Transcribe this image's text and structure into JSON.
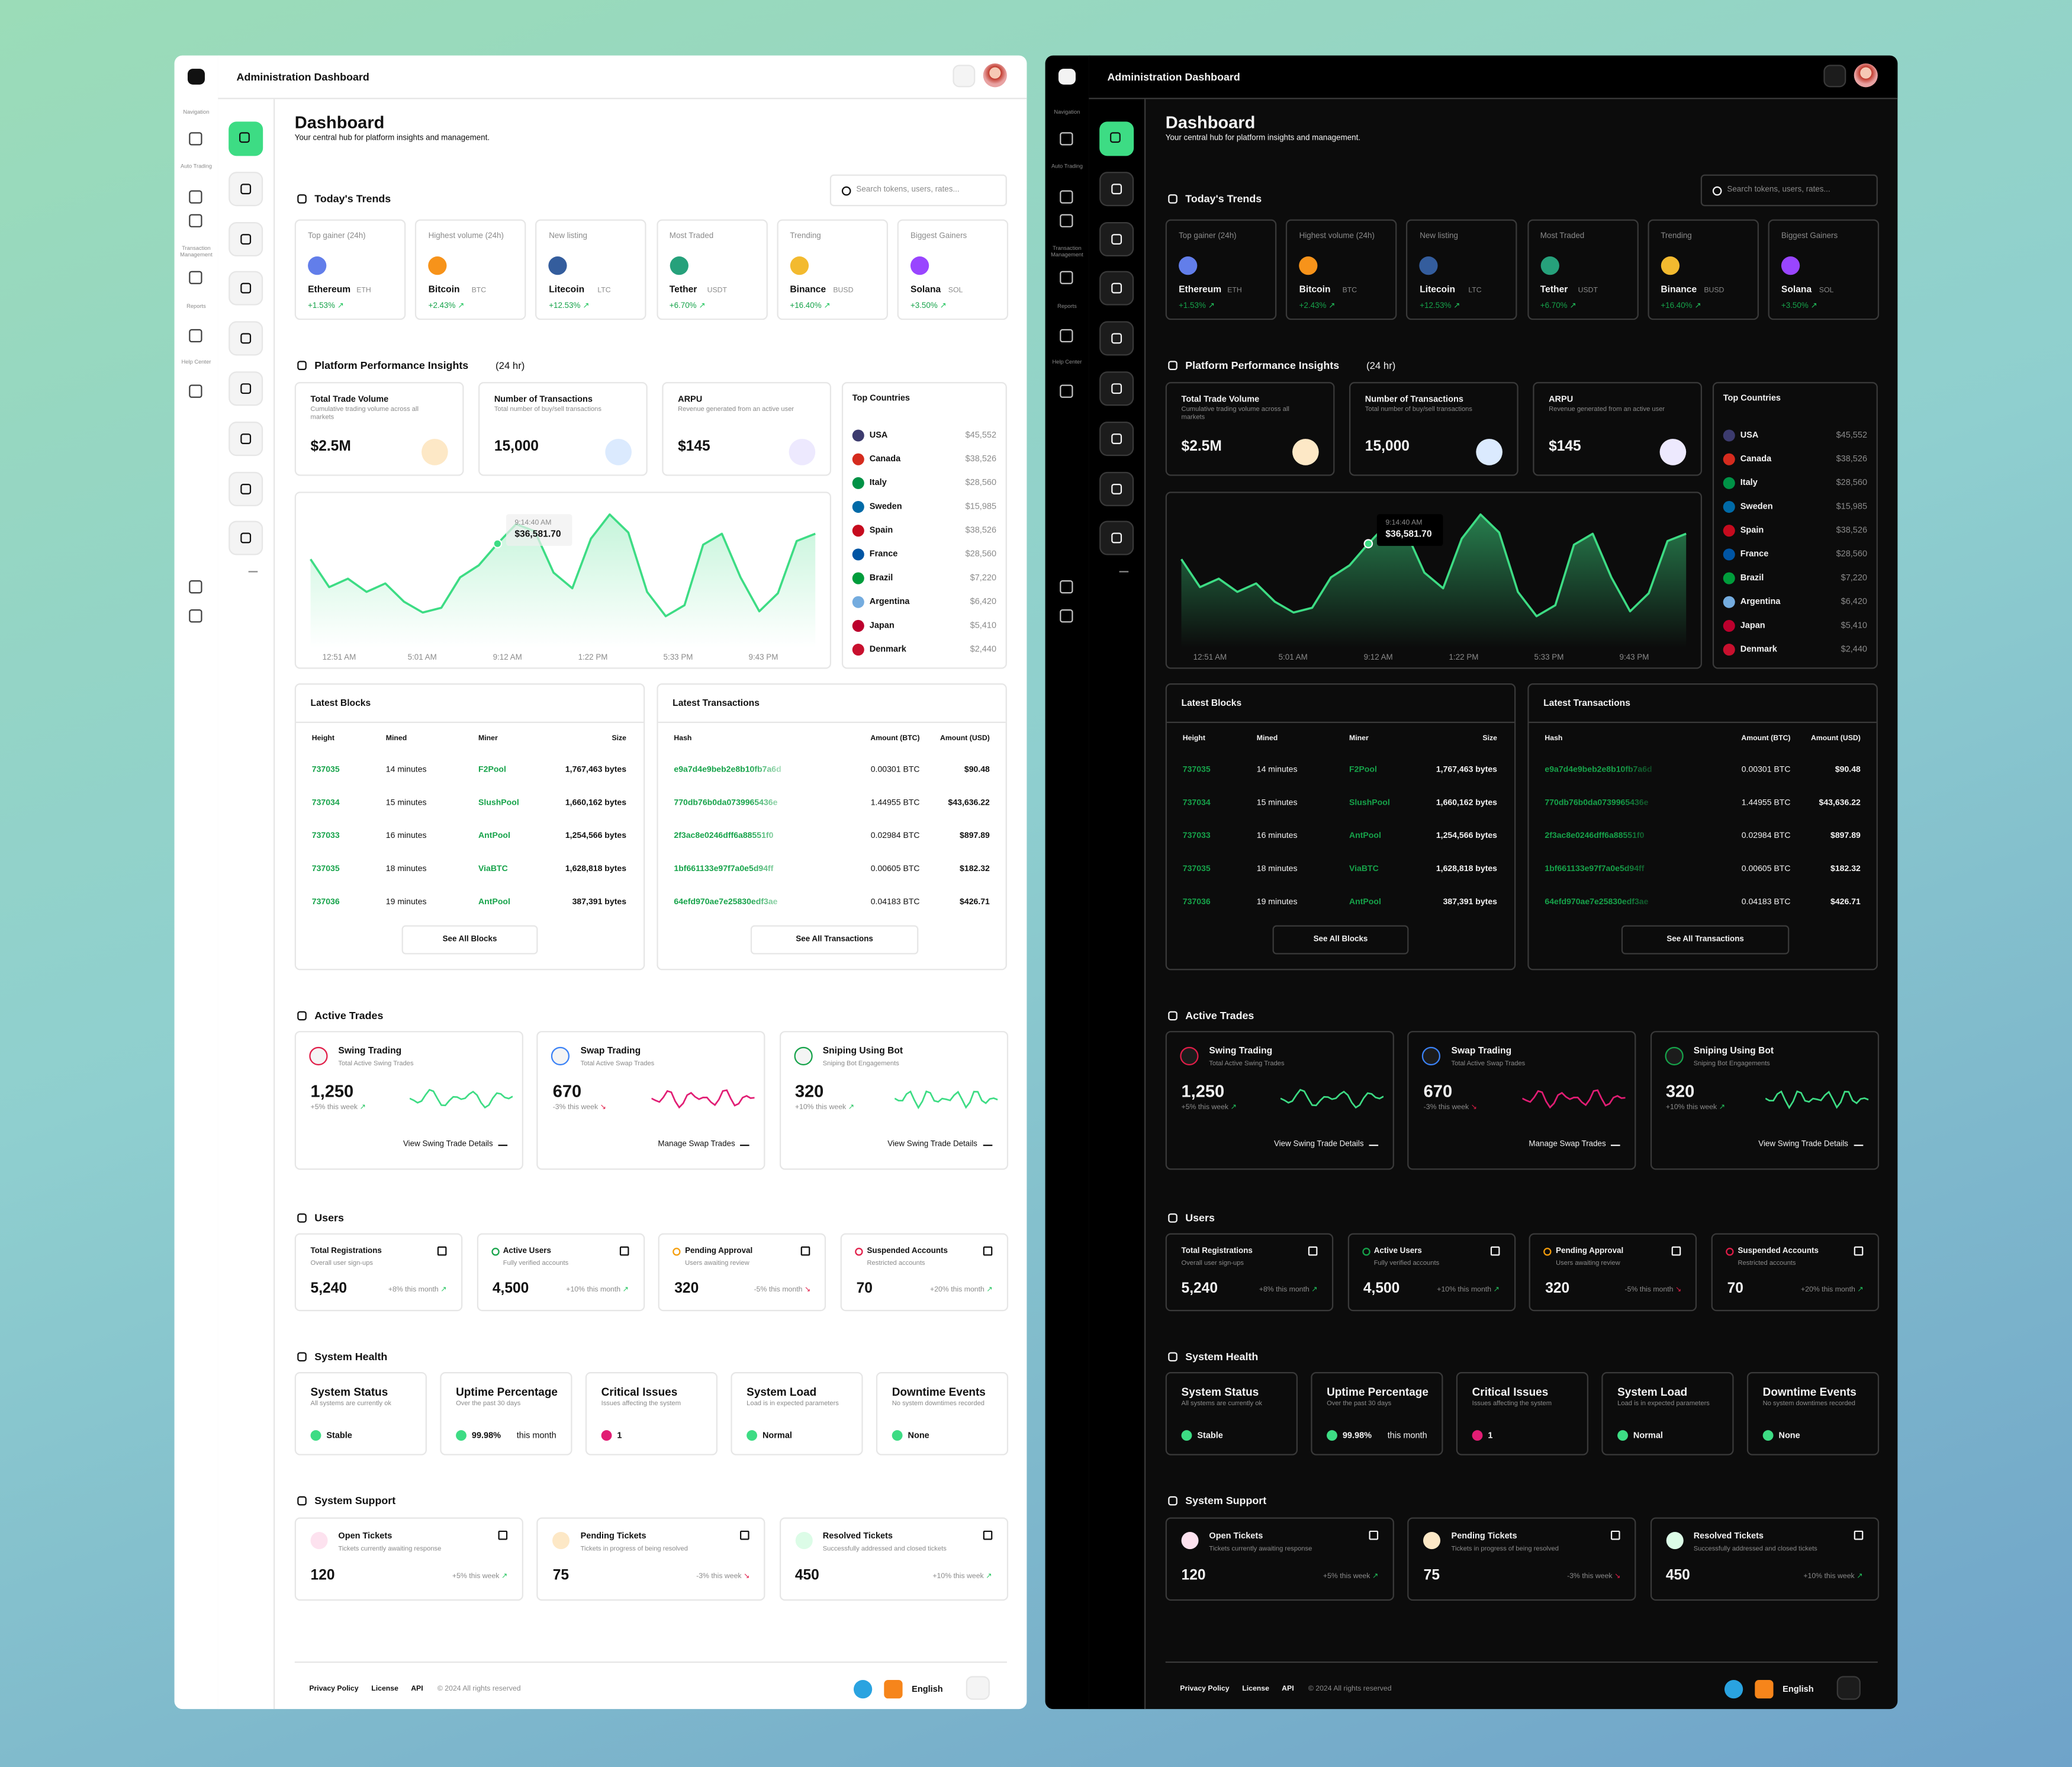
{
  "header": {
    "title": "Administration Dashboard"
  },
  "sidebar": {
    "labels": [
      "Navigation",
      "Auto Trading",
      "Transaction Management",
      "Reports",
      "Help Center"
    ]
  },
  "page": {
    "title": "Dashboard",
    "subtitle": "Your central hub for platform insights and management.",
    "search": "Search tokens, users, rates..."
  },
  "trends": {
    "title": "Today's Trends",
    "cards": [
      {
        "label": "Top gainer (24h)",
        "name": "Ethereum",
        "symbol": "ETH",
        "change": "+1.53%"
      },
      {
        "label": "Highest volume (24h)",
        "name": "Bitcoin",
        "symbol": "BTC",
        "change": "+2.43%"
      },
      {
        "label": "New listing",
        "name": "Litecoin",
        "symbol": "LTC",
        "change": "+12.53%"
      },
      {
        "label": "Most Traded",
        "name": "Tether",
        "symbol": "USDT",
        "change": "+6.70%"
      },
      {
        "label": "Trending",
        "name": "Binance",
        "symbol": "BUSD",
        "change": "+16.40%"
      },
      {
        "label": "Biggest Gainers",
        "name": "Solana",
        "symbol": "SOL",
        "change": "+3.50%"
      }
    ]
  },
  "insights": {
    "title": "Platform Performance Insights",
    "suffix": "(24 hr)",
    "cards": [
      {
        "title": "Total Trade Volume",
        "desc": "Cumulative trading volume across all markets",
        "value": "$2.5M"
      },
      {
        "title": "Number of Transactions",
        "desc": "Total number of buy/sell transactions",
        "value": "15,000"
      },
      {
        "title": "ARPU",
        "desc": "Revenue generated from an active user",
        "value": "$145"
      }
    ]
  },
  "chart": {
    "type": "line",
    "tooltip": {
      "time": "9:14:40 AM",
      "value": "$36,581.70"
    },
    "x_labels": [
      "12:51 AM",
      "5:01 AM",
      "9:12 AM",
      "1:22 PM",
      "5:33 PM",
      "9:43 PM"
    ],
    "values": [
      35300,
      33000,
      33700,
      32600,
      33300,
      31800,
      30900,
      31300,
      33800,
      34800,
      36581.7,
      38200,
      37600,
      34200,
      32900,
      37000,
      39000,
      37500,
      32600,
      30600,
      31500,
      36500,
      37400,
      33800,
      31000,
      32500,
      36800,
      37400
    ],
    "ylim": [
      28000,
      40000
    ]
  },
  "countries": {
    "title": "Top Countries",
    "rows": [
      {
        "name": "USA",
        "value": "$45,552"
      },
      {
        "name": "Canada",
        "value": "$38,526"
      },
      {
        "name": "Italy",
        "value": "$28,560"
      },
      {
        "name": "Sweden",
        "value": "$15,985"
      },
      {
        "name": "Spain",
        "value": "$38,526"
      },
      {
        "name": "France",
        "value": "$28,560"
      },
      {
        "name": "Brazil",
        "value": "$7,220"
      },
      {
        "name": "Argentina",
        "value": "$6,420"
      },
      {
        "name": "Japan",
        "value": "$5,410"
      },
      {
        "name": "Denmark",
        "value": "$2,440"
      }
    ]
  },
  "blocks": {
    "title": "Latest Blocks",
    "headers": [
      "Height",
      "Mined",
      "Miner",
      "Size"
    ],
    "rows": [
      [
        "737035",
        "14 minutes",
        "F2Pool",
        "1,767,463 bytes"
      ],
      [
        "737034",
        "15 minutes",
        "SlushPool",
        "1,660,162 bytes"
      ],
      [
        "737033",
        "16 minutes",
        "AntPool",
        "1,254,566 bytes"
      ],
      [
        "737035",
        "18 minutes",
        "ViaBTC",
        "1,628,818 bytes"
      ],
      [
        "737036",
        "19 minutes",
        "AntPool",
        "387,391 bytes"
      ]
    ],
    "button": "See All Blocks"
  },
  "transactions": {
    "title": "Latest Transactions",
    "headers": [
      "Hash",
      "Amount (BTC)",
      "Amount (USD)"
    ],
    "rows": [
      [
        "e9a7d4e9beb2e8b10fb7a6d",
        "0.00301 BTC",
        "$90.48"
      ],
      [
        "770db76b0da0739965436e",
        "1.44955 BTC",
        "$43,636.22"
      ],
      [
        "2f3ac8e0246dff6a88551f0",
        "0.02984 BTC",
        "$897.89"
      ],
      [
        "1bf661133e97f7a0e5d94ff",
        "0.00605 BTC",
        "$182.32"
      ],
      [
        "64efd970ae7e25830edf3ae",
        "0.04183 BTC",
        "$426.71"
      ]
    ],
    "button": "See All Transactions"
  },
  "trades": {
    "title": "Active Trades",
    "cards": [
      {
        "title": "Swing Trading",
        "desc": "Total Active Swing Trades",
        "value": "1,250",
        "change": "+5% this week",
        "link": "View Swing Trade Details"
      },
      {
        "title": "Swap Trading",
        "desc": "Total Active Swap Trades",
        "value": "670",
        "change": "-3% this week",
        "link": "Manage Swap Trades"
      },
      {
        "title": "Sniping Using Bot",
        "desc": "Sniping Bot Engagements",
        "value": "320",
        "change": "+10% this week",
        "link": "View Swing Trade Details"
      }
    ]
  },
  "users": {
    "title": "Users",
    "cards": [
      {
        "title": "Total Registrations",
        "desc": "Overall user sign-ups",
        "value": "5,240",
        "change": "+8% this month"
      },
      {
        "title": "Active Users",
        "desc": "Fully verified accounts",
        "value": "4,500",
        "change": "+10% this month"
      },
      {
        "title": "Pending Approval",
        "desc": "Users awaiting review",
        "value": "320",
        "change": "-5% this month"
      },
      {
        "title": "Suspended Accounts",
        "desc": "Restricted accounts",
        "value": "70",
        "change": "+20% this month"
      }
    ]
  },
  "health": {
    "title": "System Health",
    "cards": [
      {
        "title": "System Status",
        "desc": "All systems are currently ok",
        "status": "Stable"
      },
      {
        "title": "Uptime Percentage",
        "desc": "Over the past 30 days",
        "status": "99.98%",
        "suffix": "this month"
      },
      {
        "title": "Critical Issues",
        "desc": "Issues affecting the system",
        "status": "1"
      },
      {
        "title": "System Load",
        "desc": "Load is in expected parameters",
        "status": "Normal"
      },
      {
        "title": "Downtime Events",
        "desc": "No system downtimes recorded",
        "status": "None"
      }
    ]
  },
  "support": {
    "title": "System Support",
    "cards": [
      {
        "title": "Open Tickets",
        "desc": "Tickets currently awaiting response",
        "value": "120",
        "change": "+5% this week"
      },
      {
        "title": "Pending Tickets",
        "desc": "Tickets in progress of being resolved",
        "value": "75",
        "change": "-3% this week"
      },
      {
        "title": "Resolved Tickets",
        "desc": "Successfully addressed and closed tickets",
        "value": "450",
        "change": "+10% this week"
      }
    ]
  },
  "footer": {
    "links": [
      "Privacy Policy",
      "License",
      "API"
    ],
    "copyright": "© 2024 All rights reserved",
    "language": "English"
  }
}
